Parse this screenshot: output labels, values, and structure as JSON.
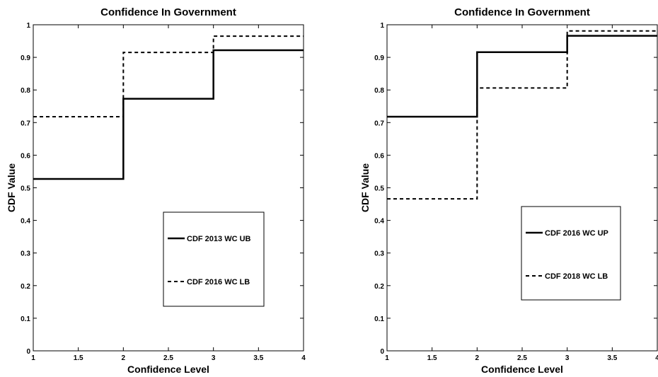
{
  "chart_data": [
    {
      "type": "line",
      "step": "post",
      "title": "Confidence In Government",
      "xlabel": "Confidence Level",
      "ylabel": "CDF Value",
      "xlim": [
        1,
        4
      ],
      "ylim": [
        0,
        1
      ],
      "xticks": [
        "1",
        "1.5",
        "2",
        "2.5",
        "3",
        "3.5",
        "4"
      ],
      "yticks": [
        "0",
        "0.1",
        "0.2",
        "0.3",
        "0.4",
        "0.5",
        "0.6",
        "0.7",
        "0.8",
        "0.9",
        "1"
      ],
      "grid": false,
      "legend_position": "lower-right",
      "series": [
        {
          "name": "CDF 2013 WC UB",
          "style": "solid",
          "x": [
            1,
            2,
            3,
            4
          ],
          "y": [
            0.527,
            0.773,
            0.922,
            0.922
          ]
        },
        {
          "name": "CDF 2016 WC LB",
          "style": "dashed",
          "x": [
            1,
            2,
            3,
            4
          ],
          "y": [
            0.718,
            0.915,
            0.965,
            0.965
          ]
        }
      ]
    },
    {
      "type": "line",
      "step": "post",
      "title": "Confidence In Government",
      "xlabel": "Confidence Level",
      "ylabel": "CDF Value",
      "xlim": [
        1,
        4
      ],
      "ylim": [
        0,
        1
      ],
      "xticks": [
        "1",
        "1.5",
        "2",
        "2.5",
        "3",
        "3.5",
        "4"
      ],
      "yticks": [
        "0",
        "0.1",
        "0.2",
        "0.3",
        "0.4",
        "0.5",
        "0.6",
        "0.7",
        "0.8",
        "0.9",
        "1"
      ],
      "grid": false,
      "legend_position": "lower-right",
      "series": [
        {
          "name": "CDF 2016 WC UP",
          "style": "solid",
          "x": [
            1,
            2,
            3,
            4
          ],
          "y": [
            0.718,
            0.916,
            0.966,
            0.966
          ]
        },
        {
          "name": "CDF 2018 WC LB",
          "style": "dashed",
          "x": [
            1,
            2,
            3,
            4
          ],
          "y": [
            0.466,
            0.806,
            0.981,
            0.981
          ]
        }
      ]
    }
  ]
}
